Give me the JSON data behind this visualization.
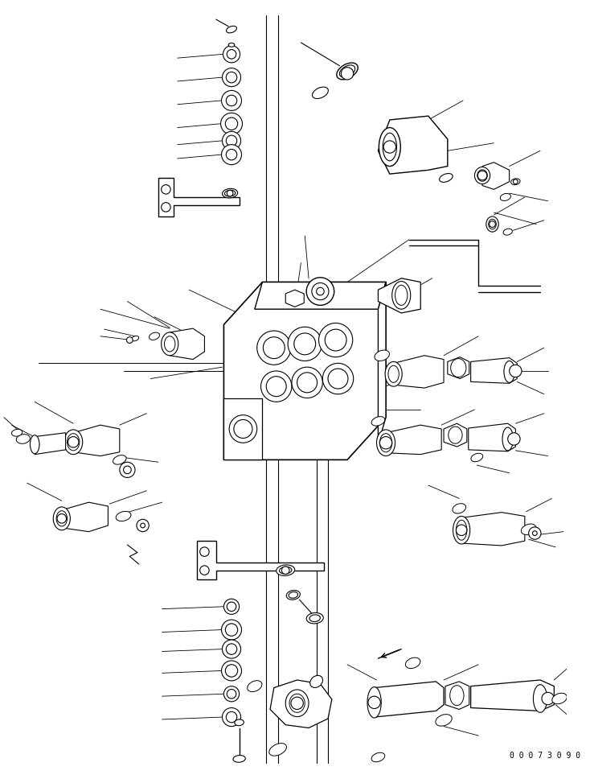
{
  "background_color": "#ffffff",
  "line_color": "#000000",
  "figure_width": 7.34,
  "figure_height": 9.68,
  "dpi": 100,
  "watermark": "0 0 0 7 3 0 9 0",
  "watermark_fontsize": 7
}
